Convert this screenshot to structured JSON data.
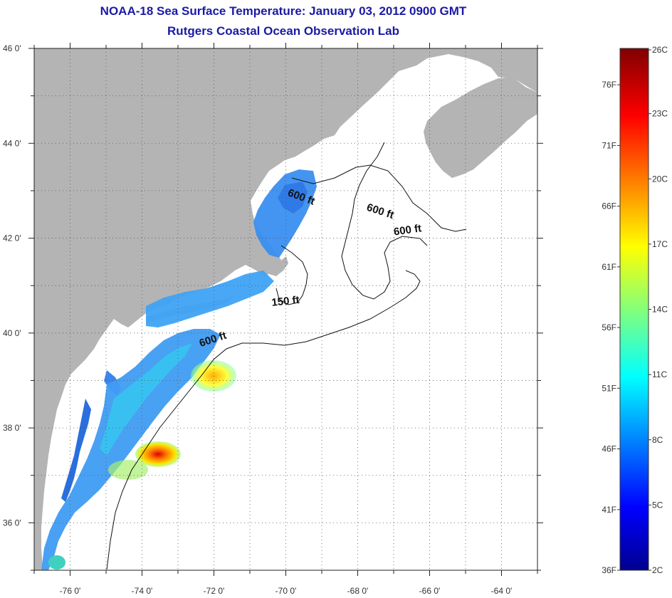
{
  "title": "NOAA-18 Sea Surface Temperature:  January 03, 2012 0900 GMT",
  "subtitle": "Rutgers Coastal Ocean Observation Lab",
  "map": {
    "lon_range": [
      -77,
      -63
    ],
    "lat_range": [
      35,
      46
    ],
    "lat_ticks": [
      {
        "value": 46,
        "label": "46 0'"
      },
      {
        "value": 44,
        "label": "44 0'"
      },
      {
        "value": 42,
        "label": "42 0'"
      },
      {
        "value": 40,
        "label": "40 0'"
      },
      {
        "value": 38,
        "label": "38 0'"
      },
      {
        "value": 36,
        "label": "36 0'"
      }
    ],
    "lon_ticks": [
      {
        "value": -76,
        "label": "-76 0'"
      },
      {
        "value": -74,
        "label": "-74 0'"
      },
      {
        "value": -72,
        "label": "-72 0'"
      },
      {
        "value": -70,
        "label": "-70 0'"
      },
      {
        "value": -68,
        "label": "-68 0'"
      },
      {
        "value": -66,
        "label": "-66 0'"
      },
      {
        "value": -64,
        "label": "-64 0'"
      }
    ],
    "contour_labels": [
      {
        "text": "600 ft",
        "lon": -69.6,
        "lat": 42.8
      },
      {
        "text": "600 ft",
        "lon": -67.4,
        "lat": 42.5
      },
      {
        "text": "600 ft",
        "lon": -66.6,
        "lat": 42.1
      },
      {
        "text": "150 ft",
        "lon": -70.0,
        "lat": 40.6
      },
      {
        "text": "600 ft",
        "lon": -72.0,
        "lat": 39.8
      }
    ],
    "colors": {
      "land": "#b4b4b4",
      "ocean": "#ffffff",
      "grid": "#555555"
    }
  },
  "colorbar": {
    "celsius_labels": [
      "26C",
      "23C",
      "20C",
      "17C",
      "14C",
      "11C",
      "8C",
      "5C",
      "2C"
    ],
    "fahrenheit_labels": [
      "76F",
      "71F",
      "66F",
      "61F",
      "56F",
      "51F",
      "46F",
      "41F",
      "36F"
    ],
    "colormap": "jet",
    "range_c": [
      2,
      26
    ],
    "range_f": [
      36,
      79
    ]
  }
}
